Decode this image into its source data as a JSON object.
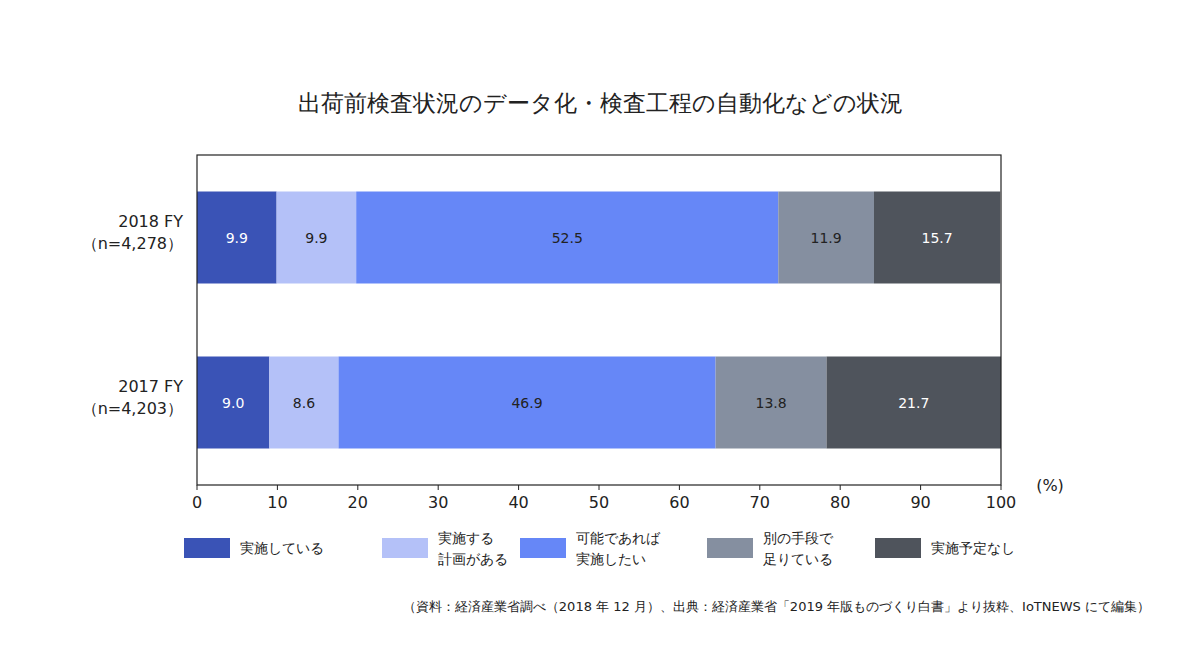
{
  "chart_data": {
    "type": "bar",
    "orientation": "horizontal",
    "stacked": true,
    "data_labels": true,
    "grid": false,
    "title": "出荷前検査状況のデータ化・検査工程の自動化などの状況",
    "x_label": "(%)",
    "note": "（資料：経済産業省調べ（2018 年 12 月）、出典：経済産業省「2019 年版ものづくり白書」より抜粋、IoTNEWS にて編集）",
    "categories": [
      "2018 FY\n（n=4,278）",
      "2017 FY\n（n=4,203）"
    ],
    "xlim": [
      0,
      100
    ],
    "xticks": [
      0,
      10,
      20,
      30,
      40,
      50,
      60,
      70,
      80,
      90,
      100
    ],
    "series": [
      {
        "name": "実施している",
        "color": "#3a53b6",
        "values": [
          9.9,
          9.0
        ],
        "value_labels": [
          "9.9",
          "9.0"
        ]
      },
      {
        "name": "実施する\n計画がある",
        "color": "#b4c1f8",
        "values": [
          9.9,
          8.6
        ]
      },
      {
        "name": "可能であれば\n実施したい",
        "color": "#6687f7",
        "values": [
          52.5,
          46.9
        ]
      },
      {
        "name": "別の手段で\n足りている",
        "color": "#858fa0",
        "values": [
          11.9,
          13.8
        ]
      },
      {
        "name": "実施予定なし",
        "color": "#4f545c",
        "values": [
          15.7,
          21.7
        ]
      }
    ]
  }
}
